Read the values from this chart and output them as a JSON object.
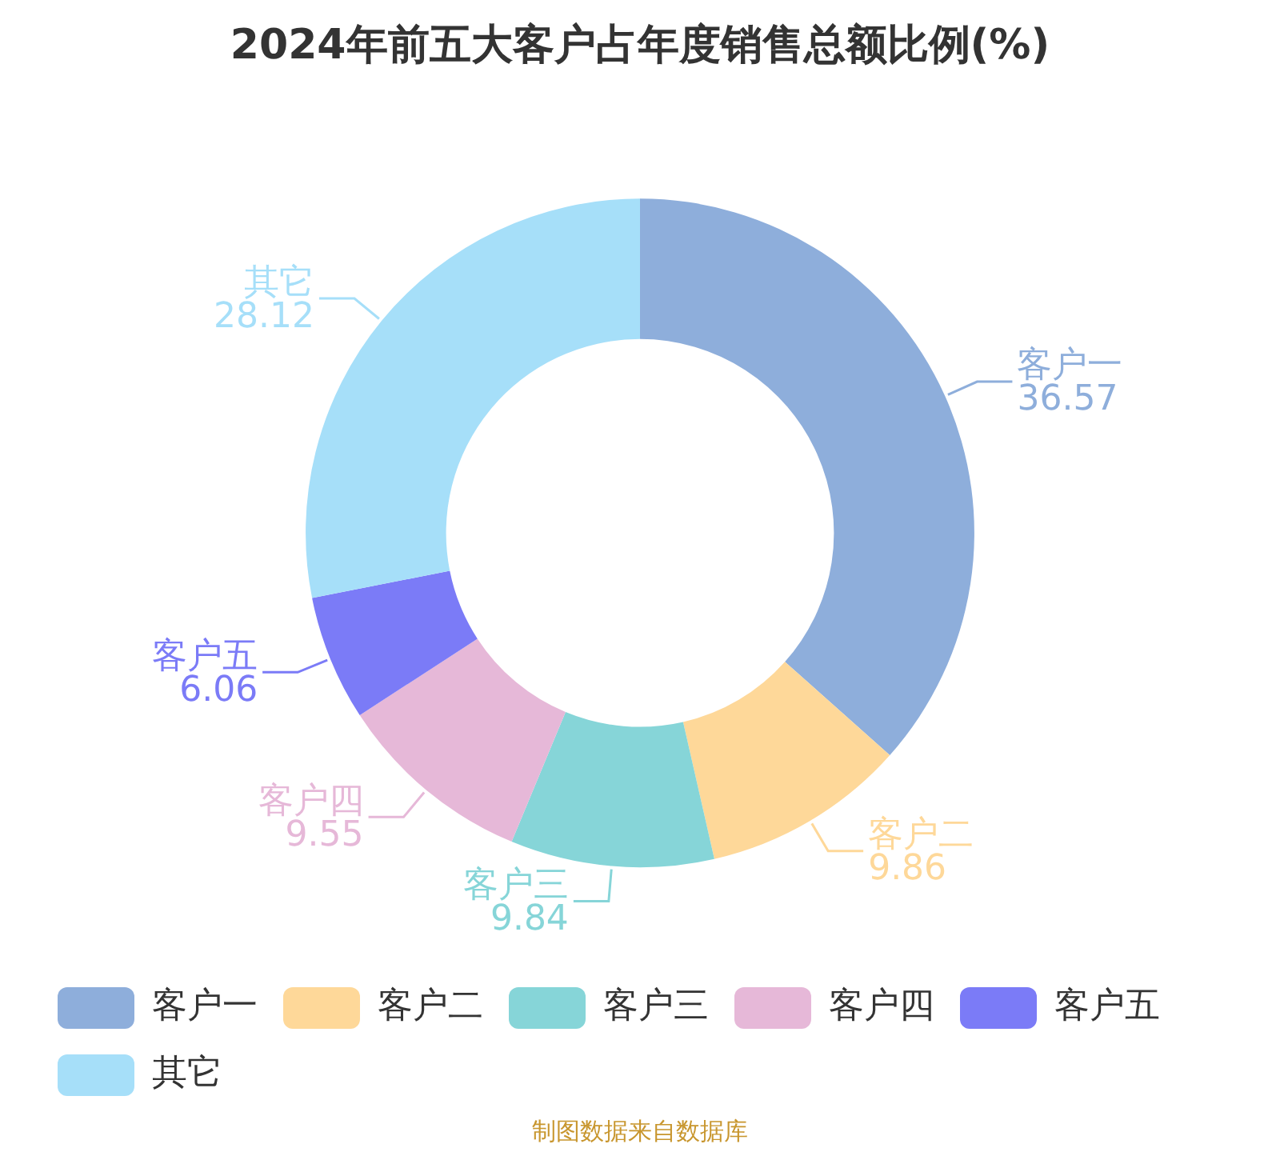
{
  "chart_data": {
    "type": "donut",
    "title": "2024年前五大客户占年度销售总额比例(%)",
    "categories": [
      "客户一",
      "客户二",
      "客户三",
      "客户四",
      "客户五",
      "其它"
    ],
    "values": [
      36.57,
      9.86,
      9.84,
      9.55,
      6.06,
      28.12
    ],
    "colors": [
      "#8eaedb",
      "#fed899",
      "#86d5d8",
      "#e6b8d8",
      "#7b7bf7",
      "#a6dff9"
    ],
    "data_labels": true,
    "legend": "bottom",
    "annotations": [
      "制图数据来自数据库"
    ]
  }
}
